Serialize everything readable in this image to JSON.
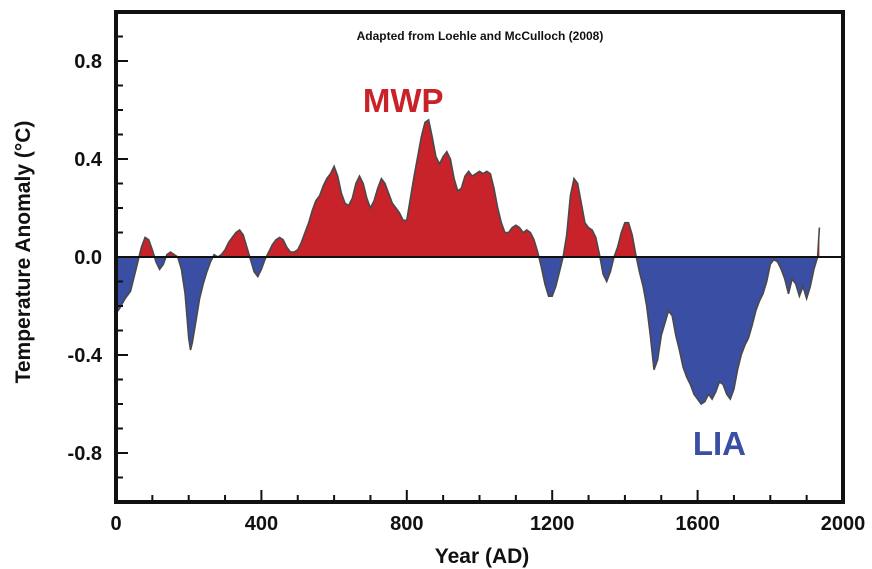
{
  "chart_data": {
    "type": "area",
    "title": "Adapted from Loehle and McCulloch (2008)",
    "xlabel": "Year (AD)",
    "ylabel": "Temperature Anomaly (°C)",
    "xlim": [
      0,
      2000
    ],
    "ylim": [
      -1.0,
      1.0
    ],
    "x_ticks": [
      0,
      400,
      800,
      1200,
      1600,
      2000
    ],
    "y_ticks": [
      -0.8,
      -0.4,
      0.0,
      0.4,
      0.8
    ],
    "y_tick_labels": [
      "-0.8",
      "-0.4",
      "0.0",
      "0.4",
      "0.8"
    ],
    "grid": false,
    "colors": {
      "positive": "#c8222a",
      "negative": "#3a4ea3",
      "line": "#4a4a4a",
      "axis": "#111111"
    },
    "annotations": [
      {
        "text": "MWP",
        "x": 790,
        "y": 0.64,
        "color": "#c8222a"
      },
      {
        "text": "LIA",
        "x": 1660,
        "y": -0.76,
        "color": "#3a4ea3"
      }
    ],
    "series": [
      {
        "x": [
          0,
          10,
          25,
          40,
          55,
          70,
          80,
          90,
          100,
          110,
          120,
          130,
          140,
          150,
          160,
          170,
          180,
          190,
          200,
          205,
          210,
          220,
          230,
          240,
          250,
          260,
          270,
          280,
          290,
          300,
          310,
          320,
          330,
          340,
          350,
          360,
          370,
          380,
          390,
          400,
          410,
          420,
          430,
          440,
          450,
          460,
          470,
          480,
          490,
          500,
          510,
          520,
          530,
          540,
          550,
          560,
          570,
          580,
          590,
          600,
          610,
          620,
          630,
          640,
          650,
          660,
          670,
          680,
          690,
          700,
          710,
          720,
          730,
          740,
          750,
          760,
          770,
          780,
          790,
          800,
          810,
          820,
          830,
          840,
          850,
          860,
          870,
          880,
          890,
          900,
          910,
          920,
          930,
          940,
          950,
          960,
          970,
          980,
          990,
          1000,
          1010,
          1020,
          1030,
          1040,
          1050,
          1060,
          1070,
          1080,
          1090,
          1100,
          1110,
          1120,
          1130,
          1140,
          1150,
          1160,
          1170,
          1180,
          1190,
          1200,
          1210,
          1220,
          1230,
          1240,
          1250,
          1260,
          1270,
          1280,
          1290,
          1300,
          1310,
          1320,
          1330,
          1340,
          1350,
          1360,
          1370,
          1380,
          1390,
          1400,
          1410,
          1420,
          1430,
          1440,
          1450,
          1460,
          1470,
          1480,
          1490,
          1500,
          1510,
          1520,
          1530,
          1540,
          1550,
          1560,
          1570,
          1580,
          1590,
          1600,
          1610,
          1620,
          1630,
          1640,
          1650,
          1660,
          1670,
          1680,
          1690,
          1700,
          1710,
          1720,
          1730,
          1740,
          1750,
          1760,
          1770,
          1780,
          1790,
          1800,
          1810,
          1820,
          1830,
          1840,
          1850,
          1860,
          1870,
          1880,
          1890,
          1900,
          1910,
          1920,
          1930,
          1935
        ],
        "values": [
          -0.23,
          -0.21,
          -0.17,
          -0.14,
          -0.05,
          0.04,
          0.08,
          0.07,
          0.03,
          -0.02,
          -0.05,
          -0.03,
          0.01,
          0.02,
          0.01,
          0.0,
          -0.05,
          -0.15,
          -0.33,
          -0.38,
          -0.35,
          -0.26,
          -0.17,
          -0.11,
          -0.06,
          -0.02,
          0.01,
          0.0,
          0.01,
          0.03,
          0.06,
          0.08,
          0.1,
          0.11,
          0.09,
          0.04,
          -0.01,
          -0.06,
          -0.08,
          -0.05,
          -0.01,
          0.02,
          0.05,
          0.07,
          0.08,
          0.07,
          0.04,
          0.02,
          0.02,
          0.03,
          0.06,
          0.1,
          0.14,
          0.19,
          0.23,
          0.25,
          0.29,
          0.32,
          0.34,
          0.37,
          0.33,
          0.26,
          0.22,
          0.21,
          0.24,
          0.3,
          0.33,
          0.3,
          0.24,
          0.2,
          0.23,
          0.28,
          0.32,
          0.3,
          0.26,
          0.22,
          0.2,
          0.18,
          0.15,
          0.15,
          0.24,
          0.33,
          0.41,
          0.49,
          0.55,
          0.56,
          0.49,
          0.41,
          0.38,
          0.41,
          0.43,
          0.4,
          0.32,
          0.27,
          0.28,
          0.33,
          0.35,
          0.33,
          0.34,
          0.35,
          0.34,
          0.35,
          0.34,
          0.28,
          0.2,
          0.14,
          0.1,
          0.1,
          0.12,
          0.13,
          0.12,
          0.1,
          0.11,
          0.1,
          0.07,
          0.02,
          -0.04,
          -0.11,
          -0.16,
          -0.16,
          -0.12,
          -0.06,
          0.0,
          0.09,
          0.25,
          0.32,
          0.3,
          0.22,
          0.14,
          0.12,
          0.11,
          0.08,
          0.01,
          -0.07,
          -0.1,
          -0.06,
          0.0,
          0.04,
          0.1,
          0.14,
          0.14,
          0.09,
          0.01,
          -0.06,
          -0.12,
          -0.2,
          -0.32,
          -0.46,
          -0.42,
          -0.32,
          -0.27,
          -0.22,
          -0.24,
          -0.32,
          -0.38,
          -0.45,
          -0.49,
          -0.52,
          -0.56,
          -0.58,
          -0.6,
          -0.59,
          -0.56,
          -0.58,
          -0.55,
          -0.51,
          -0.52,
          -0.56,
          -0.58,
          -0.54,
          -0.46,
          -0.4,
          -0.36,
          -0.33,
          -0.28,
          -0.22,
          -0.18,
          -0.15,
          -0.1,
          -0.03,
          -0.01,
          -0.02,
          -0.05,
          -0.09,
          -0.15,
          -0.09,
          -0.11,
          -0.16,
          -0.12,
          -0.17,
          -0.12,
          -0.05,
          0.0,
          0.12
        ]
      }
    ]
  }
}
